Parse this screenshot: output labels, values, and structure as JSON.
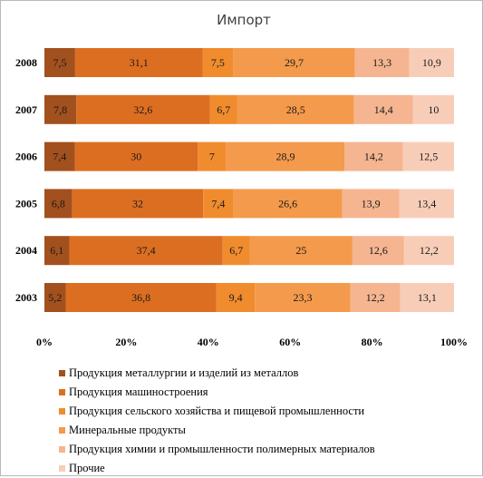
{
  "chart_data": {
    "type": "bar",
    "orientation": "horizontal",
    "stacked": "percent",
    "title": "Импорт",
    "categories": [
      "2003",
      "2004",
      "2005",
      "2006",
      "2007",
      "2008"
    ],
    "series": [
      {
        "name": "Продукция металлургии и изделий из металлов",
        "color": "#a2501e",
        "values": [
          5.2,
          6.1,
          6.8,
          7.4,
          7.8,
          7.5
        ],
        "labels": [
          "5,2",
          "6,1",
          "6,8",
          "7,4",
          "7,8",
          "7,5"
        ]
      },
      {
        "name": "Продукция машиностроения",
        "color": "#dc6e22",
        "values": [
          36.8,
          37.4,
          32,
          30,
          32.6,
          31.1
        ],
        "labels": [
          "36,8",
          "37,4",
          "32",
          "30",
          "32,6",
          "31,1"
        ]
      },
      {
        "name": "Продукция сельского хозяйства и пищевой промышленности",
        "color": "#f08c2e",
        "values": [
          9.4,
          6.7,
          7.4,
          7,
          6.7,
          7.5
        ],
        "labels": [
          "9,4",
          "6,7",
          "7,4",
          "7",
          "6,7",
          "7,5"
        ]
      },
      {
        "name": "Минеральные продукты",
        "color": "#f49a4c",
        "values": [
          23.3,
          25,
          26.6,
          28.9,
          28.5,
          29.7
        ],
        "labels": [
          "23,3",
          "25",
          "26,6",
          "28,9",
          "28,5",
          "29,7"
        ]
      },
      {
        "name": "Продукция химии и промышленности полимерных материалов",
        "color": "#f5b590",
        "values": [
          12.2,
          12.6,
          13.9,
          14.2,
          14.4,
          13.3
        ],
        "labels": [
          "12,2",
          "12,6",
          "13,9",
          "14,2",
          "14,4",
          "13,3"
        ]
      },
      {
        "name": "Прочие",
        "color": "#f8cdb8",
        "values": [
          13.1,
          12.2,
          13.4,
          12.5,
          10,
          10.9
        ],
        "labels": [
          "13,1",
          "12,2",
          "13,4",
          "12,5",
          "10",
          "10,9"
        ]
      }
    ],
    "x_ticks": [
      "0%",
      "20%",
      "40%",
      "60%",
      "80%",
      "100%"
    ],
    "xlim": [
      0,
      100
    ],
    "grid": false,
    "legend_position": "bottom"
  }
}
